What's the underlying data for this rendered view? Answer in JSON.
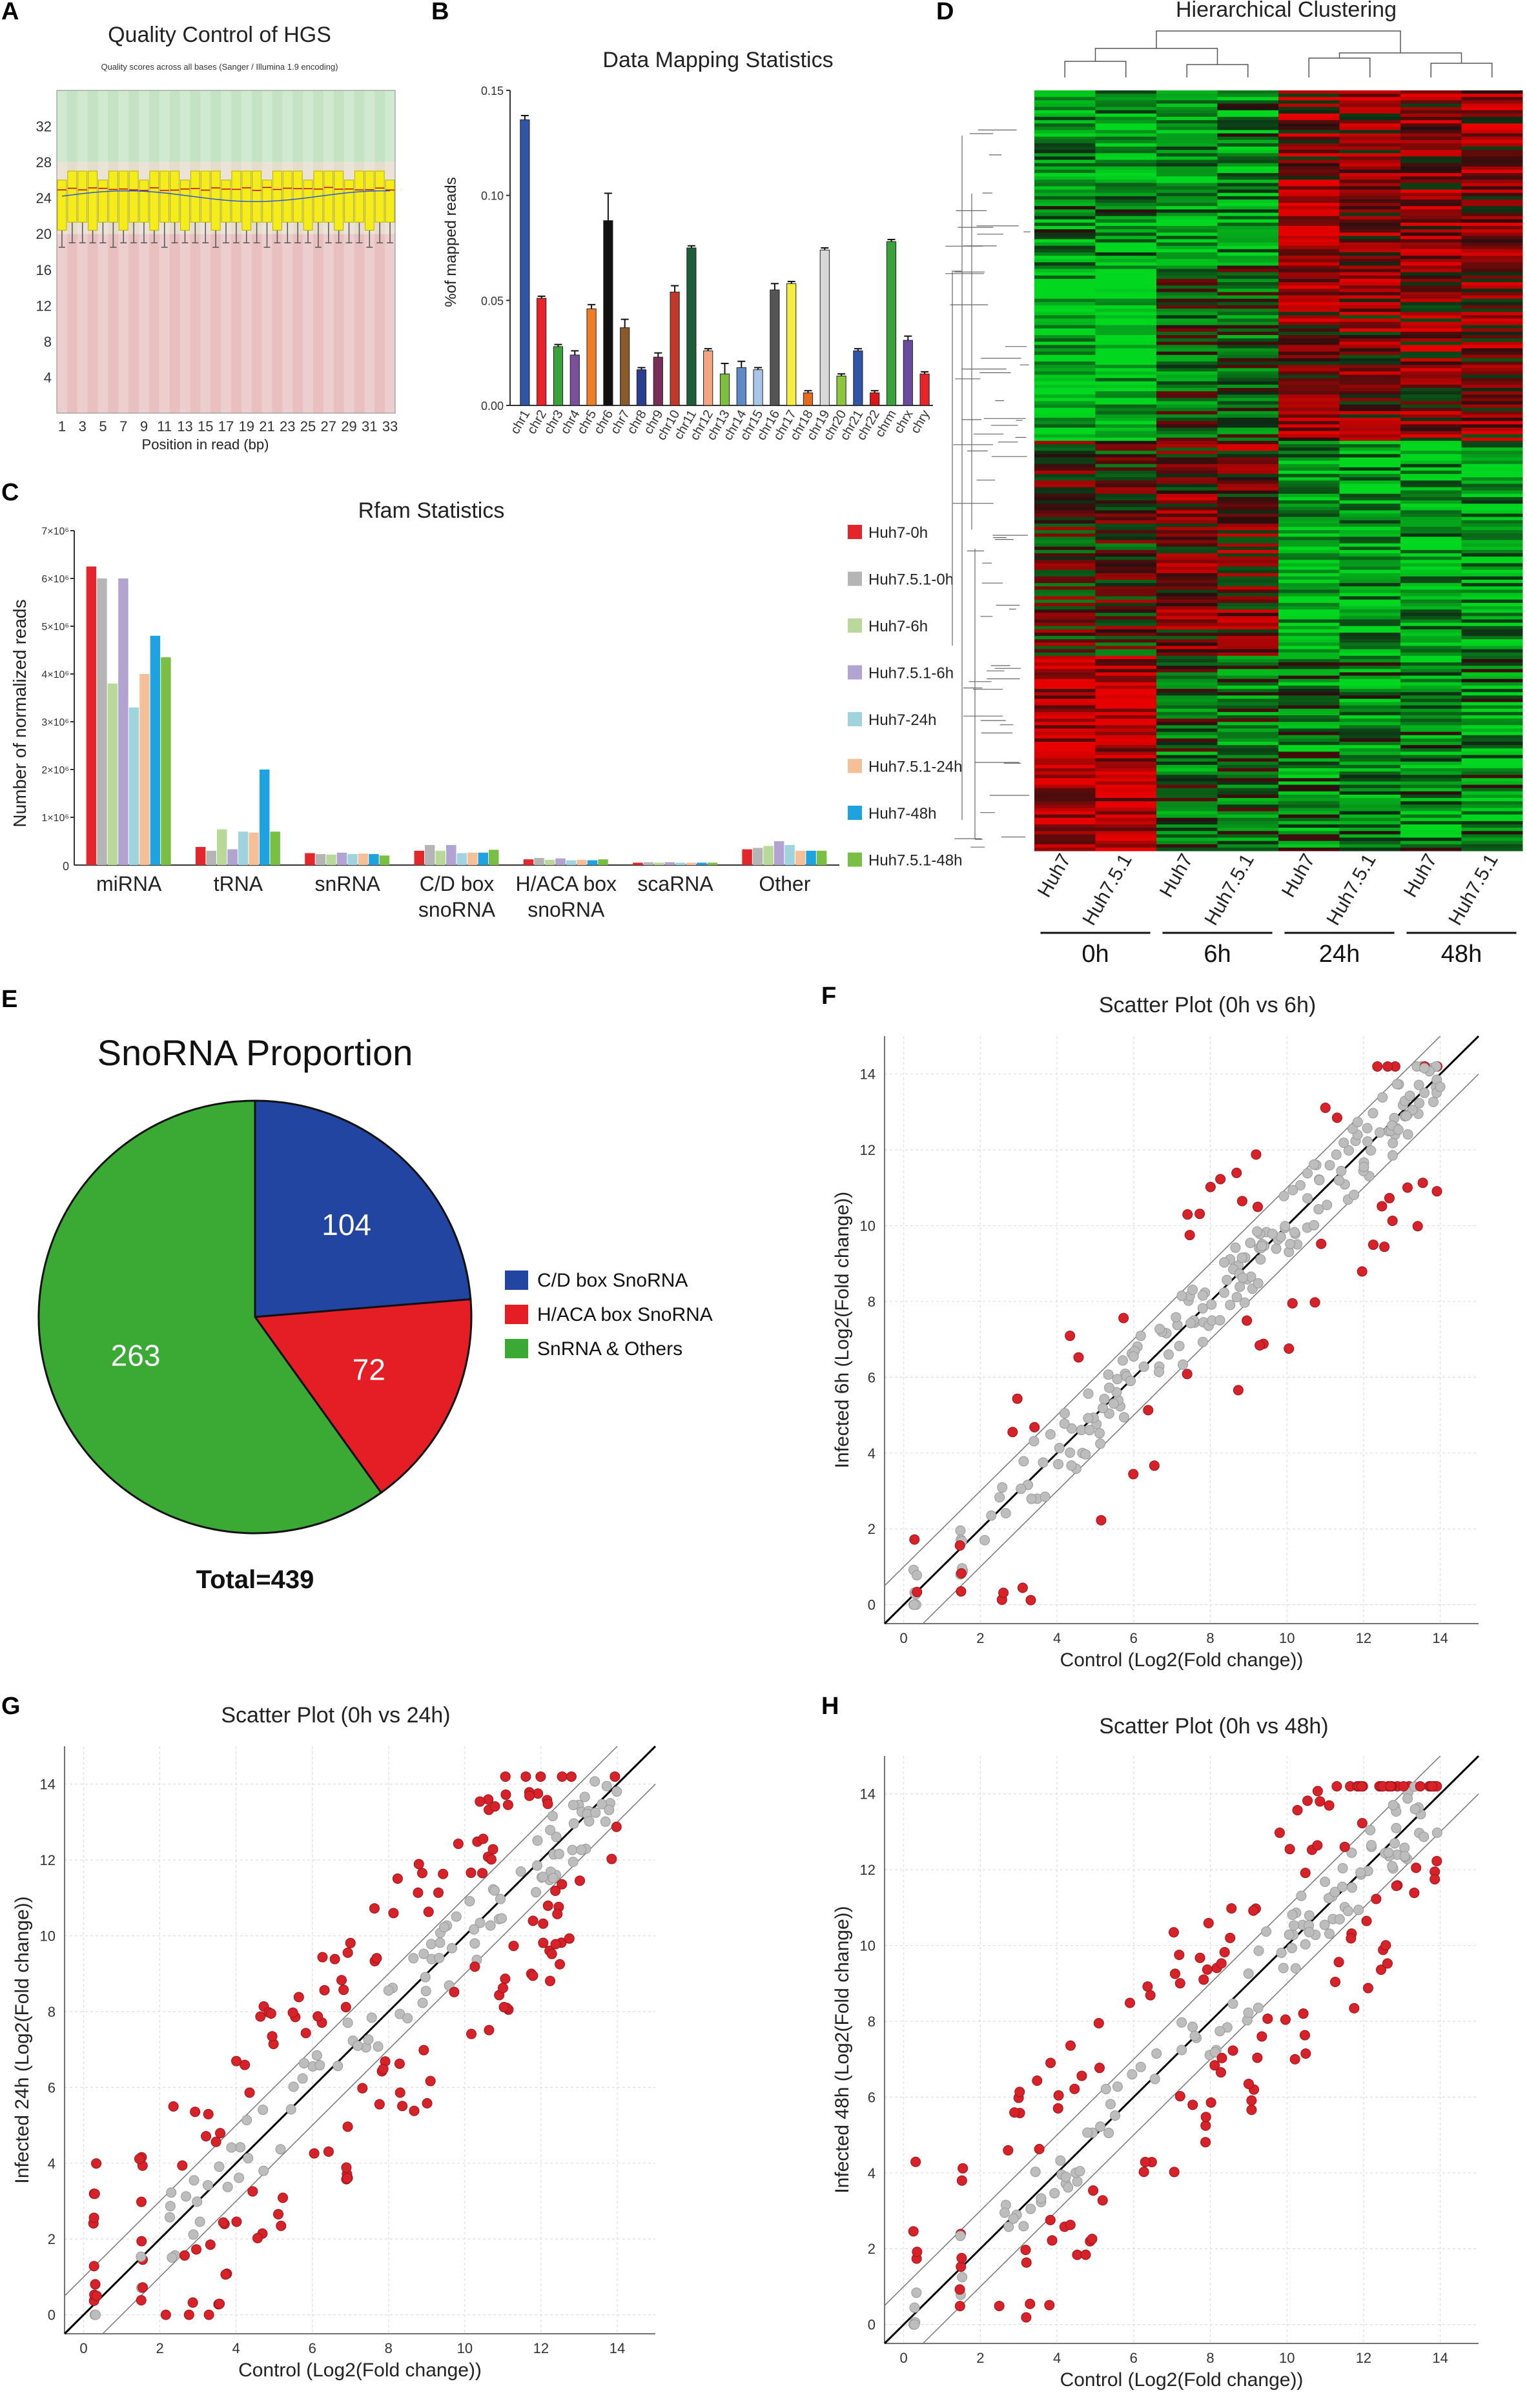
{
  "panels": {
    "a": {
      "label": "A",
      "title": "Quality Control of HGS",
      "subtitle": "Quality scores across all bases (Sanger / Illumina 1.9 encoding)",
      "xlabel": "Position in read (bp)"
    },
    "b": {
      "label": "B"
    },
    "c": {
      "label": "C"
    },
    "d": {
      "label": "D",
      "title": "Hierarchical Clustering",
      "columns": [
        "Huh7",
        "Huh7.5.1",
        "Huh7",
        "Huh7.5.1",
        "Huh7",
        "Huh7.5.1",
        "Huh7",
        "Huh7.5.1"
      ],
      "groups": [
        "0h",
        "6h",
        "24h",
        "48h"
      ]
    },
    "e": {
      "label": "E"
    },
    "f": {
      "label": "F"
    },
    "g": {
      "label": "G"
    },
    "h": {
      "label": "H"
    }
  },
  "chart_data": [
    {
      "id": "quality",
      "type": "box",
      "title": "Quality Control of HGS",
      "subtitle": "Quality scores across all bases (Sanger / Illumina 1.9 encoding)",
      "xlabel": "Position in read (bp)",
      "ylabel": "",
      "x_ticks": [
        "1",
        "3",
        "5",
        "7",
        "9",
        "11",
        "13",
        "15",
        "17",
        "19",
        "21",
        "23",
        "25",
        "27",
        "29",
        "31",
        "33"
      ],
      "y_ticks": [
        "4",
        "8",
        "12",
        "16",
        "20",
        "24",
        "28",
        "32"
      ],
      "ylim": [
        0,
        36
      ],
      "zones": [
        {
          "from": 0,
          "to": 20,
          "color": "#e8c0c0"
        },
        {
          "from": 20,
          "to": 28,
          "color": "#e6dccb"
        },
        {
          "from": 28,
          "to": 36,
          "color": "#c3e3c3"
        }
      ],
      "box": {
        "q1": 21,
        "q3": 27,
        "median": 25,
        "whisker_low": 19,
        "whisker_high": 27.5
      }
    },
    {
      "id": "mapping",
      "type": "bar",
      "title": "Data Mapping Statistics",
      "ylabel": "%of mapped reads",
      "ylim": [
        0,
        0.15
      ],
      "y_ticks": [
        "0.00",
        "0.05",
        "0.10",
        "0.15"
      ],
      "categories": [
        "chr1",
        "chr2",
        "chr3",
        "chr4",
        "chr5",
        "chr6",
        "chr7",
        "chr8",
        "chr9",
        "chr10",
        "chr11",
        "chr12",
        "chr13",
        "chr14",
        "chr15",
        "chr16",
        "chr17",
        "chr18",
        "chr19",
        "chr20",
        "chr21",
        "chr22",
        "chrm",
        "chrx",
        "chry"
      ],
      "values": [
        0.136,
        0.051,
        0.028,
        0.024,
        0.046,
        0.088,
        0.037,
        0.017,
        0.023,
        0.054,
        0.075,
        0.026,
        0.015,
        0.018,
        0.017,
        0.055,
        0.058,
        0.006,
        0.074,
        0.014,
        0.026,
        0.006,
        0.078,
        0.031,
        0.015
      ],
      "errors": [
        0.002,
        0.001,
        0.001,
        0.002,
        0.002,
        0.013,
        0.004,
        0.001,
        0.002,
        0.003,
        0.001,
        0.001,
        0.005,
        0.003,
        0.001,
        0.003,
        0.001,
        0.001,
        0.001,
        0.001,
        0.001,
        0.001,
        0.001,
        0.002,
        0.001
      ],
      "colors": [
        "#2f55a4",
        "#e8242a",
        "#3aa23a",
        "#7b4f9c",
        "#ef7d27",
        "#111111",
        "#8b5a2b",
        "#2a3d8f",
        "#7a2d55",
        "#c0392b",
        "#1e5d3a",
        "#f4a582",
        "#7fbf3f",
        "#5e8ac7",
        "#a9c6e8",
        "#555555",
        "#f4ee44",
        "#e36a1b",
        "#d8d8d8",
        "#8cc63f",
        "#2f55a4",
        "#d7191c",
        "#3aa23a",
        "#6a4c9c",
        "#e8242a"
      ]
    },
    {
      "id": "rfam",
      "type": "bar",
      "title": "Rfam Statistics",
      "ylabel": "Number of normalized reads",
      "ylim": [
        0,
        7000000
      ],
      "y_ticks": [
        "1×10⁶",
        "2×10⁶",
        "3×10⁶",
        "4×10⁶",
        "5×10⁶",
        "6×10⁶",
        "7×10⁶"
      ],
      "categories": [
        "miRNA",
        "tRNA",
        "snRNA",
        "C/D box\nsnoRNA",
        "H/ACA box\nsnoRNA",
        "scaRNA",
        "Other"
      ],
      "series": [
        {
          "name": "Huh7-0h",
          "color": "#e3262c",
          "values": [
            6250000,
            380000,
            250000,
            300000,
            120000,
            50000,
            330000
          ]
        },
        {
          "name": "Huh7.5.1-0h",
          "color": "#b5b5b5",
          "values": [
            6000000,
            300000,
            230000,
            420000,
            150000,
            60000,
            360000
          ]
        },
        {
          "name": "Huh7-6h",
          "color": "#b8d99a",
          "values": [
            3800000,
            750000,
            220000,
            300000,
            110000,
            50000,
            400000
          ]
        },
        {
          "name": "Huh7.5.1-6h",
          "color": "#b3a3d2",
          "values": [
            6000000,
            330000,
            260000,
            420000,
            140000,
            60000,
            500000
          ]
        },
        {
          "name": "Huh7-24h",
          "color": "#9fd4de",
          "values": [
            3300000,
            700000,
            230000,
            250000,
            100000,
            50000,
            420000
          ]
        },
        {
          "name": "Huh7.5.1-24h",
          "color": "#f5bf97",
          "values": [
            4000000,
            680000,
            240000,
            260000,
            110000,
            50000,
            300000
          ]
        },
        {
          "name": "Huh7-48h",
          "color": "#1fa2e0",
          "values": [
            4800000,
            2000000,
            230000,
            260000,
            100000,
            50000,
            300000
          ]
        },
        {
          "name": "Huh7.5.1-48h",
          "color": "#78bf44",
          "values": [
            4350000,
            700000,
            200000,
            320000,
            120000,
            50000,
            300000
          ]
        }
      ]
    },
    {
      "id": "snorna-pie",
      "type": "pie",
      "title": "SnoRNA Proportion",
      "total_label": "Total=439",
      "slices": [
        {
          "label": "C/D box SnoRNA",
          "value": 104,
          "color": "#2145a0"
        },
        {
          "label": "H/ACA box SnoRNA",
          "value": 72,
          "color": "#e51e25"
        },
        {
          "label": "SnRNA & Others",
          "value": 263,
          "color": "#3aaa35"
        }
      ]
    },
    {
      "id": "scatter-6h",
      "type": "scatter",
      "title": "Scatter Plot (0h vs 6h)",
      "xlabel": "Control (Log2(Fold change))",
      "ylabel": "Infected 6h (Log2(Fold change))",
      "xlim": [
        -0.5,
        15
      ],
      "ylim": [
        -0.5,
        15
      ],
      "ticks": [
        0,
        2,
        4,
        6,
        8,
        10,
        12,
        14
      ],
      "n_points": 260,
      "red_fraction": 0.25,
      "seed": 11,
      "band": 1
    },
    {
      "id": "scatter-24h",
      "type": "scatter",
      "title": "Scatter Plot (0h vs 24h)",
      "xlabel": "Control (Log2(Fold change))",
      "ylabel": "Infected 24h (Log2(Fold change))",
      "xlim": [
        -0.5,
        15
      ],
      "ylim": [
        -0.5,
        15
      ],
      "ticks": [
        0,
        2,
        4,
        6,
        8,
        10,
        12,
        14
      ],
      "n_points": 260,
      "red_fraction": 0.58,
      "seed": 23,
      "band": 1
    },
    {
      "id": "scatter-48h",
      "type": "scatter",
      "title": "Scatter Plot (0h vs 48h)",
      "xlabel": "Control (Log2(Fold change))",
      "ylabel": "Infected 48h (Log2(Fold change))",
      "xlim": [
        -0.5,
        15
      ],
      "ylim": [
        -0.5,
        15
      ],
      "ticks": [
        0,
        2,
        4,
        6,
        8,
        10,
        12,
        14
      ],
      "n_points": 260,
      "red_fraction": 0.58,
      "seed": 37,
      "band": 1
    }
  ]
}
